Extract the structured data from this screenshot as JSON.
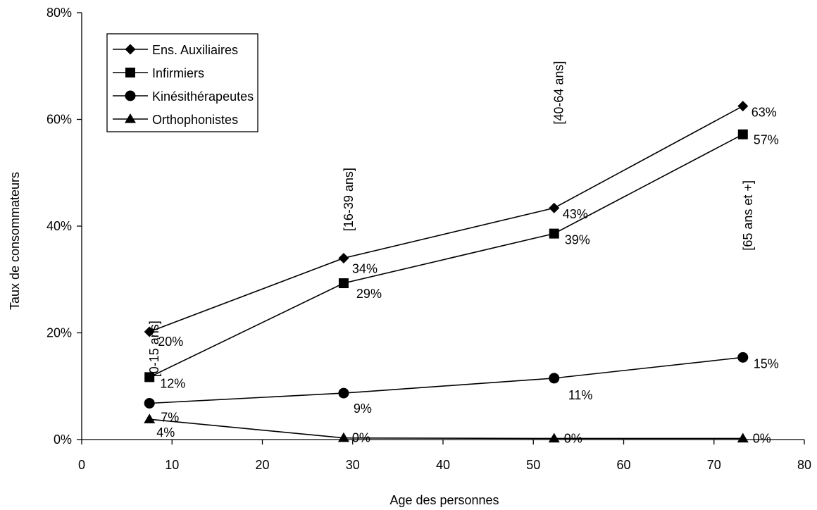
{
  "chart_data": {
    "type": "line",
    "xlabel": "Age des personnes",
    "ylabel": "Taux de consommateurs",
    "xlim": [
      0,
      80
    ],
    "ylim": [
      0,
      80
    ],
    "x_ticks": [
      0,
      10,
      20,
      30,
      40,
      50,
      60,
      70,
      80
    ],
    "y_ticks": [
      0,
      20,
      40,
      60,
      80
    ],
    "y_tick_labels": [
      "0%",
      "20%",
      "40%",
      "60%",
      "80%"
    ],
    "grid": false,
    "legend_position": "top-left",
    "x": [
      7.5,
      29,
      52.3,
      73.2
    ],
    "age_group_labels": [
      "[0-15 ans]",
      "[16-39 ans]",
      "[40-64 ans]",
      "[65 ans et +]"
    ],
    "series": [
      {
        "name": "Ens. Auxiliaires",
        "marker": "diamond",
        "values": [
          20.2,
          34,
          43.4,
          62.5
        ],
        "labels": [
          "20%",
          "34%",
          "43%",
          "63%"
        ]
      },
      {
        "name": "Infirmiers",
        "marker": "square",
        "values": [
          11.7,
          29.3,
          38.6,
          57.2
        ],
        "labels": [
          "12%",
          "29%",
          "39%",
          "57%"
        ]
      },
      {
        "name": "Kinésithérapeutes",
        "marker": "circle",
        "values": [
          6.8,
          8.7,
          11.5,
          15.4
        ],
        "labels": [
          "7%",
          "9%",
          "11%",
          "15%"
        ]
      },
      {
        "name": "Orthophonistes",
        "marker": "triangle",
        "values": [
          3.8,
          0.3,
          0.2,
          0.2
        ],
        "labels": [
          "4%",
          "0%",
          "0%",
          "0%"
        ]
      }
    ],
    "colors": {
      "line": "#000000",
      "background": "#ffffff"
    }
  }
}
